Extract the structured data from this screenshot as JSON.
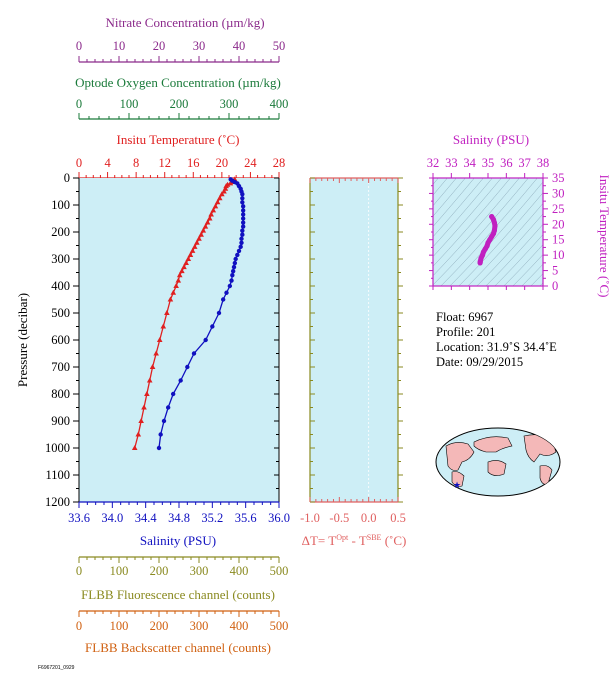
{
  "colors": {
    "nitrate": "#8b2a8b",
    "oxygen": "#1a7a3a",
    "temperature": "#e02020",
    "salinity": "#1010c0",
    "fluorescence": "#8a8a20",
    "backscatter": "#d06010",
    "delta_t": "#e06060",
    "inset": "#c020c0",
    "plot_bg": "#cdeef6",
    "land": "#f4b8b8"
  },
  "chart_data": [
    {
      "type": "line",
      "name": "main-profile",
      "ylabel": "Pressure (decibar)",
      "ylim": [
        0,
        1200
      ],
      "yticks": [
        0,
        100,
        200,
        300,
        400,
        500,
        600,
        700,
        800,
        900,
        1000,
        1100,
        1200
      ],
      "grid": false,
      "axes": {
        "nitrate": {
          "label": "Nitrate Concentration (µm/kg)",
          "range": [
            0,
            50
          ],
          "ticks": [
            0,
            10,
            20,
            30,
            40,
            50
          ]
        },
        "oxygen": {
          "label": "Optode Oxygen Concentration (µm/kg)",
          "range": [
            0,
            400
          ],
          "ticks": [
            0,
            100,
            200,
            300,
            400
          ]
        },
        "temperature": {
          "label": "Insitu Temperature (˚C)",
          "range": [
            0,
            28
          ],
          "ticks": [
            0,
            4,
            8,
            12,
            16,
            20,
            24,
            28
          ]
        },
        "salinity": {
          "label": "Salinity (PSU)",
          "range": [
            33.6,
            36.0
          ],
          "ticks": [
            "33.6",
            "34.0",
            "34.4",
            "34.8",
            "35.2",
            "35.6",
            "36.0"
          ]
        },
        "fluorescence": {
          "label": "FLBB Fluorescence channel (counts)",
          "range": [
            0,
            500
          ],
          "ticks": [
            0,
            100,
            200,
            300,
            400,
            500
          ]
        },
        "backscatter": {
          "label": "FLBB Backscatter channel (counts)",
          "range": [
            0,
            500
          ],
          "ticks": [
            0,
            100,
            200,
            300,
            400,
            500
          ]
        }
      },
      "series": [
        {
          "name": "Temperature",
          "axis": "temperature",
          "marker": "triangle",
          "points": [
            [
              21.8,
              5
            ],
            [
              21.7,
              10
            ],
            [
              21.5,
              15
            ],
            [
              21.2,
              20
            ],
            [
              20.8,
              25
            ],
            [
              20.6,
              30
            ],
            [
              20.5,
              40
            ],
            [
              20.3,
              50
            ],
            [
              20.0,
              60
            ],
            [
              19.7,
              75
            ],
            [
              19.4,
              90
            ],
            [
              19.1,
              105
            ],
            [
              18.8,
              120
            ],
            [
              18.5,
              135
            ],
            [
              18.3,
              150
            ],
            [
              18.0,
              165
            ],
            [
              17.7,
              180
            ],
            [
              17.4,
              195
            ],
            [
              17.1,
              210
            ],
            [
              16.8,
              225
            ],
            [
              16.5,
              240
            ],
            [
              16.2,
              255
            ],
            [
              15.9,
              270
            ],
            [
              15.6,
              285
            ],
            [
              15.3,
              300
            ],
            [
              15.0,
              315
            ],
            [
              14.7,
              330
            ],
            [
              14.4,
              345
            ],
            [
              14.1,
              360
            ],
            [
              13.9,
              380
            ],
            [
              13.6,
              400
            ],
            [
              13.2,
              425
            ],
            [
              12.8,
              450
            ],
            [
              12.3,
              500
            ],
            [
              11.8,
              550
            ],
            [
              11.3,
              600
            ],
            [
              10.8,
              650
            ],
            [
              10.3,
              700
            ],
            [
              9.9,
              750
            ],
            [
              9.5,
              800
            ],
            [
              9.1,
              850
            ],
            [
              8.7,
              900
            ],
            [
              8.3,
              950
            ],
            [
              7.8,
              1000
            ]
          ]
        },
        {
          "name": "Salinity",
          "axis": "salinity",
          "marker": "circle",
          "points": [
            [
              35.42,
              5
            ],
            [
              35.44,
              10
            ],
            [
              35.47,
              15
            ],
            [
              35.5,
              20
            ],
            [
              35.52,
              30
            ],
            [
              35.54,
              40
            ],
            [
              35.55,
              50
            ],
            [
              35.56,
              60
            ],
            [
              35.56,
              75
            ],
            [
              35.56,
              90
            ],
            [
              35.57,
              105
            ],
            [
              35.57,
              120
            ],
            [
              35.57,
              135
            ],
            [
              35.57,
              150
            ],
            [
              35.57,
              165
            ],
            [
              35.57,
              180
            ],
            [
              35.56,
              195
            ],
            [
              35.56,
              210
            ],
            [
              35.55,
              225
            ],
            [
              35.55,
              240
            ],
            [
              35.54,
              255
            ],
            [
              35.52,
              270
            ],
            [
              35.5,
              285
            ],
            [
              35.48,
              300
            ],
            [
              35.47,
              315
            ],
            [
              35.46,
              330
            ],
            [
              35.45,
              345
            ],
            [
              35.44,
              360
            ],
            [
              35.43,
              380
            ],
            [
              35.41,
              400
            ],
            [
              35.37,
              425
            ],
            [
              35.33,
              450
            ],
            [
              35.28,
              500
            ],
            [
              35.2,
              550
            ],
            [
              35.12,
              600
            ],
            [
              34.98,
              650
            ],
            [
              34.9,
              700
            ],
            [
              34.82,
              750
            ],
            [
              34.73,
              800
            ],
            [
              34.67,
              850
            ],
            [
              34.62,
              900
            ],
            [
              34.58,
              950
            ],
            [
              34.56,
              1000
            ]
          ]
        }
      ]
    },
    {
      "type": "line",
      "name": "delta-t",
      "xlabel": "ΔT= T",
      "xlabel_sup1": "Opt",
      "xlabel_mid": " - T",
      "xlabel_sup2": "SBE",
      "xlabel_unit": " (˚C)",
      "xlim": [
        -1.0,
        0.5
      ],
      "xticks": [
        "-1.0",
        "-0.5",
        "0.0",
        "0.5"
      ],
      "ylim": [
        0,
        1200
      ],
      "series": []
    },
    {
      "type": "scatter",
      "name": "ts-diagram",
      "title": "Salinity (PSU)",
      "ylabel": "Insitu Temperature (˚C)",
      "xlim": [
        32,
        38
      ],
      "xticks": [
        32,
        33,
        34,
        35,
        36,
        37,
        38
      ],
      "ylim": [
        0,
        35
      ],
      "yticks": [
        0,
        5,
        10,
        15,
        20,
        25,
        30,
        35
      ],
      "points": [
        [
          35.2,
          22.5
        ],
        [
          35.3,
          21.5
        ],
        [
          35.35,
          20.5
        ],
        [
          35.38,
          19.5
        ],
        [
          35.35,
          18
        ],
        [
          35.3,
          17
        ],
        [
          35.2,
          16
        ],
        [
          35.1,
          15
        ],
        [
          35.0,
          14
        ],
        [
          34.95,
          13
        ],
        [
          34.85,
          12
        ],
        [
          34.75,
          11
        ],
        [
          34.7,
          10
        ],
        [
          34.62,
          9
        ],
        [
          34.58,
          8
        ],
        [
          34.57,
          7.5
        ]
      ]
    }
  ],
  "float_info": {
    "float": "Float:  6967",
    "profile": "Profile:  201",
    "location": "Location:  31.9˚S  34.4˚E",
    "date": "Date:  09/29/2015"
  },
  "stamp": "F6967201_0929"
}
